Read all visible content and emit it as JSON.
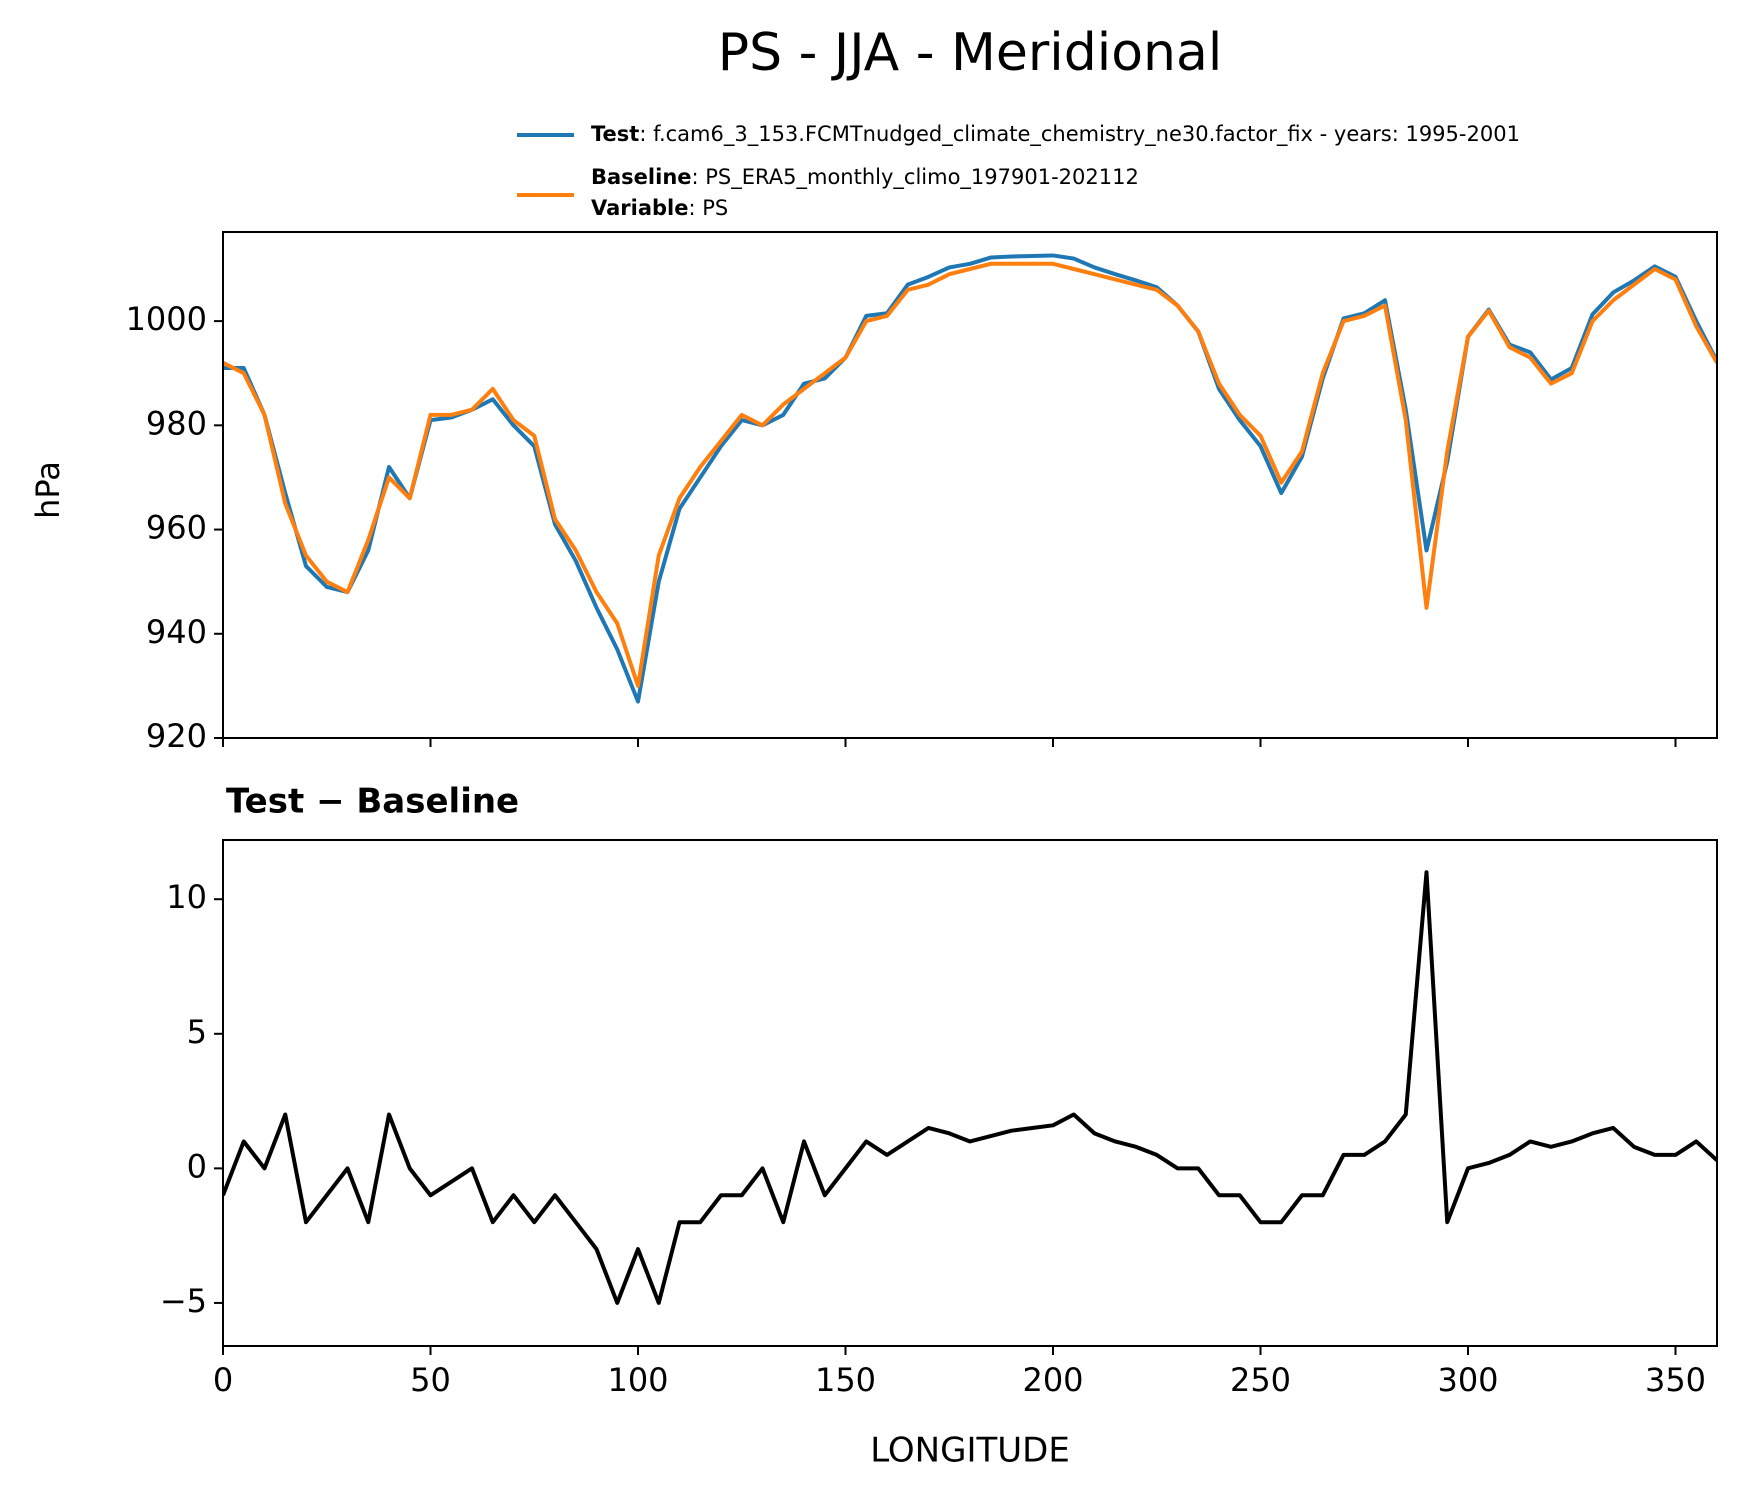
{
  "chart_data": [
    {
      "type": "line",
      "title": "PS - JJA - Meridional",
      "ylabel": "hPa",
      "x": [
        0,
        5,
        10,
        15,
        20,
        25,
        30,
        35,
        40,
        45,
        50,
        55,
        60,
        65,
        70,
        75,
        80,
        85,
        90,
        95,
        100,
        105,
        110,
        115,
        120,
        125,
        130,
        135,
        140,
        145,
        150,
        155,
        160,
        165,
        170,
        175,
        180,
        185,
        190,
        195,
        200,
        205,
        210,
        215,
        220,
        225,
        230,
        235,
        240,
        245,
        250,
        255,
        260,
        265,
        270,
        275,
        280,
        285,
        290,
        295,
        300,
        305,
        310,
        315,
        320,
        325,
        330,
        335,
        340,
        345,
        350,
        355,
        360
      ],
      "series": [
        {
          "name": "Test",
          "description": ": f.cam6_3_153.FCMTnudged_climate_chemistry_ne30.factor_fix - years: 1995-2001",
          "color": "#1f77b4",
          "values": [
            991,
            991,
            982,
            967,
            953,
            949,
            948,
            956,
            972,
            966,
            981,
            981.5,
            983,
            985,
            980,
            976,
            961,
            954,
            945,
            937,
            927,
            950,
            964,
            970,
            976,
            981,
            980,
            982,
            988,
            989,
            993,
            1001,
            1001.5,
            1007,
            1008.5,
            1010.3,
            1011,
            1012.2,
            1012.4,
            1012.5,
            1012.6,
            1012,
            1010.3,
            1009,
            1007.8,
            1006.5,
            1003,
            998,
            987,
            981,
            976,
            967,
            974,
            989,
            1000.5,
            1001.5,
            1004,
            983,
            956,
            973,
            997,
            1002.2,
            995.5,
            994,
            988.8,
            991,
            1001.3,
            1005.5,
            1007.8,
            1010.5,
            1008.5,
            1000,
            992.3
          ]
        },
        {
          "name": "Baseline",
          "description": ": PS_ERA5_monthly_climo_197901-202112",
          "color": "#ff7f0e",
          "values": [
            992,
            990,
            982,
            965,
            955,
            950,
            948,
            958,
            970,
            966,
            982,
            982,
            983,
            987,
            981,
            978,
            962,
            956,
            948,
            942,
            930,
            955,
            966,
            972,
            977,
            982,
            980,
            984,
            987,
            990,
            993,
            1000,
            1001,
            1006,
            1007,
            1009,
            1010,
            1011,
            1011,
            1011,
            1011,
            1010,
            1009,
            1008,
            1007,
            1006,
            1003,
            998,
            988,
            982,
            978,
            969,
            975,
            990,
            1000,
            1001,
            1003,
            981,
            945,
            975,
            997,
            1002,
            995,
            993,
            988,
            990,
            1000,
            1004,
            1007,
            1010,
            1008,
            999,
            992
          ]
        }
      ],
      "legend_extra": {
        "name": "Variable",
        "description": ": PS"
      },
      "xlim": [
        0,
        360
      ],
      "xticks": [
        0,
        50,
        100,
        150,
        200,
        250,
        300,
        350
      ],
      "ylim": [
        920,
        1017.1
      ],
      "yticks": [
        920,
        940,
        960,
        980,
        1000
      ]
    },
    {
      "type": "line",
      "title": "Test − Baseline",
      "xlabel": "LONGITUDE",
      "x": [
        0,
        5,
        10,
        15,
        20,
        25,
        30,
        35,
        40,
        45,
        50,
        55,
        60,
        65,
        70,
        75,
        80,
        85,
        90,
        95,
        100,
        105,
        110,
        115,
        120,
        125,
        130,
        135,
        140,
        145,
        150,
        155,
        160,
        165,
        170,
        175,
        180,
        185,
        190,
        195,
        200,
        205,
        210,
        215,
        220,
        225,
        230,
        235,
        240,
        245,
        250,
        255,
        260,
        265,
        270,
        275,
        280,
        285,
        290,
        295,
        300,
        305,
        310,
        315,
        320,
        325,
        330,
        335,
        340,
        345,
        350,
        355,
        360
      ],
      "series": [
        {
          "color": "#000000",
          "values": [
            -1,
            1,
            0,
            2,
            -2,
            -1,
            0,
            -2,
            2,
            0,
            -1,
            -0.5,
            0,
            -2,
            -1,
            -2,
            -1,
            -2,
            -3,
            -5,
            -3,
            -5,
            -2,
            -2,
            -1,
            -1,
            0,
            -2,
            1,
            -1,
            0,
            1,
            0.5,
            1,
            1.5,
            1.3,
            1,
            1.2,
            1.4,
            1.5,
            1.6,
            2,
            1.3,
            1,
            0.8,
            0.5,
            0,
            0,
            -1,
            -1,
            -2,
            -2,
            -1,
            -1,
            0.5,
            0.5,
            1,
            2,
            11,
            -2,
            0,
            0.2,
            0.5,
            1,
            0.8,
            1,
            1.3,
            1.5,
            0.8,
            0.5,
            0.5,
            1,
            0.3
          ]
        }
      ],
      "xlim": [
        0,
        360
      ],
      "xticks": [
        0,
        50,
        100,
        150,
        200,
        250,
        300,
        350
      ],
      "ylim": [
        -6.6,
        12.2
      ],
      "yticks": [
        {
          "value": -5,
          "label": "−5"
        },
        0,
        5,
        10
      ]
    }
  ]
}
